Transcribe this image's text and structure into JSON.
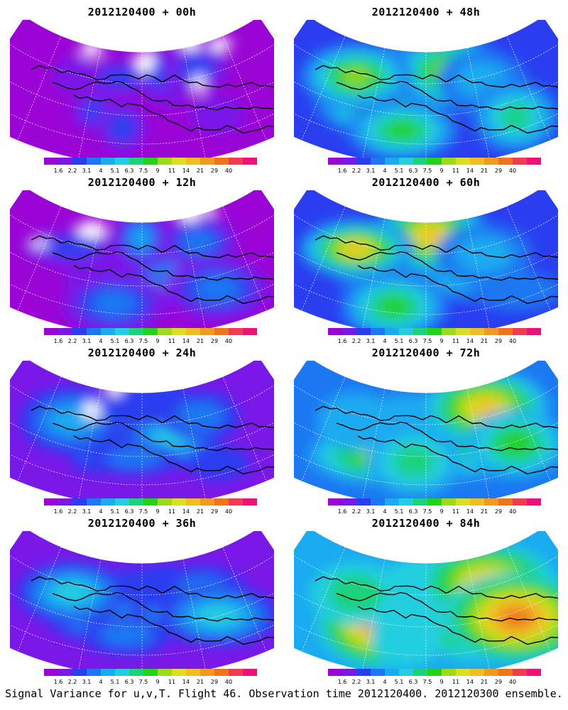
{
  "panels": [
    {
      "title": "2012120400 + 00h",
      "lead_hours": 0
    },
    {
      "title": "2012120400 + 48h",
      "lead_hours": 48
    },
    {
      "title": "2012120400 + 12h",
      "lead_hours": 12
    },
    {
      "title": "2012120400 + 60h",
      "lead_hours": 60
    },
    {
      "title": "2012120400 + 24h",
      "lead_hours": 24
    },
    {
      "title": "2012120400 + 72h",
      "lead_hours": 72
    },
    {
      "title": "2012120400 + 36h",
      "lead_hours": 36
    },
    {
      "title": "2012120400 + 84h",
      "lead_hours": 84
    }
  ],
  "colorbar": {
    "labels": [
      "1.6",
      "2.2",
      "3.1",
      "4",
      "5.1",
      "6.3",
      "7.5",
      "9",
      "11",
      "14",
      "21",
      "29",
      "40"
    ],
    "colors": [
      "#9a05d6",
      "#7a18e8",
      "#2a3ef0",
      "#1c78f2",
      "#1aaaf0",
      "#22cfe0",
      "#1cd27a",
      "#22d21c",
      "#9adc1c",
      "#dede20",
      "#f0be20",
      "#f09a20",
      "#f0741c",
      "#f03c50",
      "#f0107a"
    ]
  },
  "caption": "Signal Variance for u,v,T. Flight 46. Observation time 2012120400. 2012120300 ensemble."
}
